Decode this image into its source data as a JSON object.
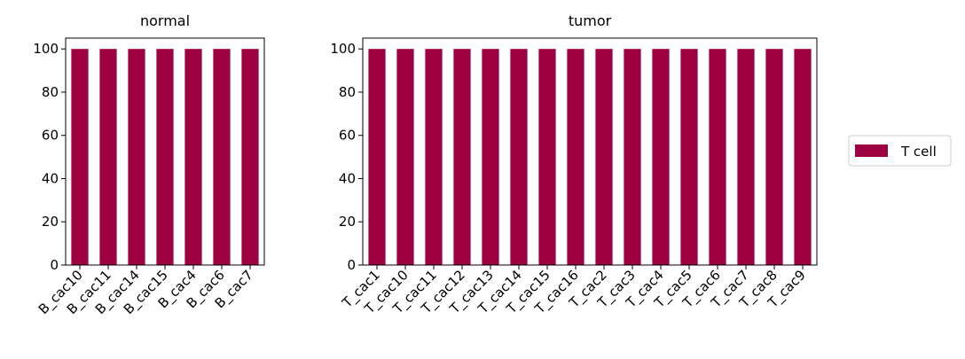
{
  "chart_data": [
    {
      "type": "bar",
      "title": "normal",
      "categories": [
        "B_cac10",
        "B_cac11",
        "B_cac14",
        "B_cac15",
        "B_cac4",
        "B_cac6",
        "B_cac7"
      ],
      "values": [
        100,
        100,
        100,
        100,
        100,
        100,
        100
      ],
      "color": "#9e0142",
      "ylim": [
        0,
        105
      ],
      "yticks": [
        0,
        20,
        40,
        60,
        80,
        100
      ]
    },
    {
      "type": "bar",
      "title": "tumor",
      "categories": [
        "T_cac1",
        "T_cac10",
        "T_cac11",
        "T_cac12",
        "T_cac13",
        "T_cac14",
        "T_cac15",
        "T_cac16",
        "T_cac2",
        "T_cac3",
        "T_cac4",
        "T_cac5",
        "T_cac6",
        "T_cac7",
        "T_cac8",
        "T_cac9"
      ],
      "series": [
        {
          "name": "T cell",
          "color": "#9e0142",
          "values": [
            100,
            100,
            100,
            100,
            100,
            100,
            100,
            100,
            100,
            100,
            100,
            100,
            100,
            100,
            100,
            100
          ]
        }
      ],
      "ylim": [
        0,
        105
      ],
      "yticks": [
        0,
        20,
        40,
        60,
        80,
        100
      ]
    }
  ]
}
